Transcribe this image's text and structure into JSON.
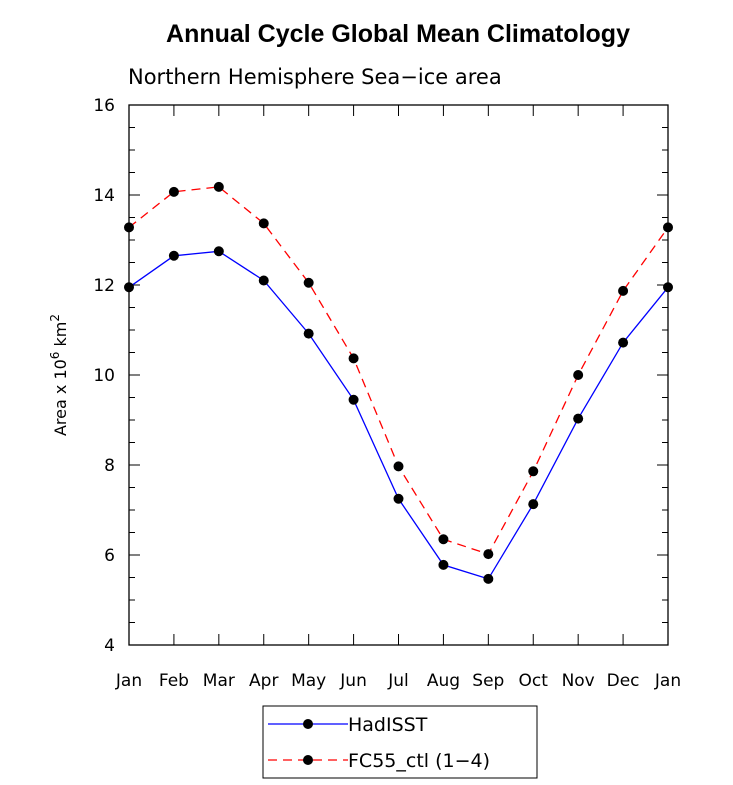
{
  "chart_data": {
    "type": "line",
    "title": "Annual Cycle Global Mean Climatology",
    "subtitle": "Northern Hemisphere Sea−ice area",
    "ylabel_parts": [
      "Area x 10",
      "6",
      " km",
      "2"
    ],
    "categories": [
      "Jan",
      "Feb",
      "Mar",
      "Apr",
      "May",
      "Jun",
      "Jul",
      "Aug",
      "Sep",
      "Oct",
      "Nov",
      "Dec",
      "Jan"
    ],
    "ylim": [
      4,
      16
    ],
    "yticks": [
      4,
      6,
      8,
      10,
      12,
      14,
      16
    ],
    "yminor_step": 0.5,
    "grid": false,
    "legend_position": "bottom-center",
    "series": [
      {
        "name": "HadISST",
        "color": "#0000ff",
        "dash": "solid",
        "values": [
          11.95,
          12.65,
          12.75,
          12.1,
          10.92,
          9.45,
          7.25,
          5.78,
          5.47,
          7.13,
          9.03,
          10.72,
          11.95
        ]
      },
      {
        "name": "FC55_ctl (1−4)",
        "color": "#ff0000",
        "dash": "dashed",
        "values": [
          13.28,
          14.07,
          14.18,
          13.37,
          12.05,
          10.37,
          7.97,
          6.35,
          6.02,
          7.86,
          10.0,
          11.87,
          13.28
        ]
      }
    ]
  }
}
